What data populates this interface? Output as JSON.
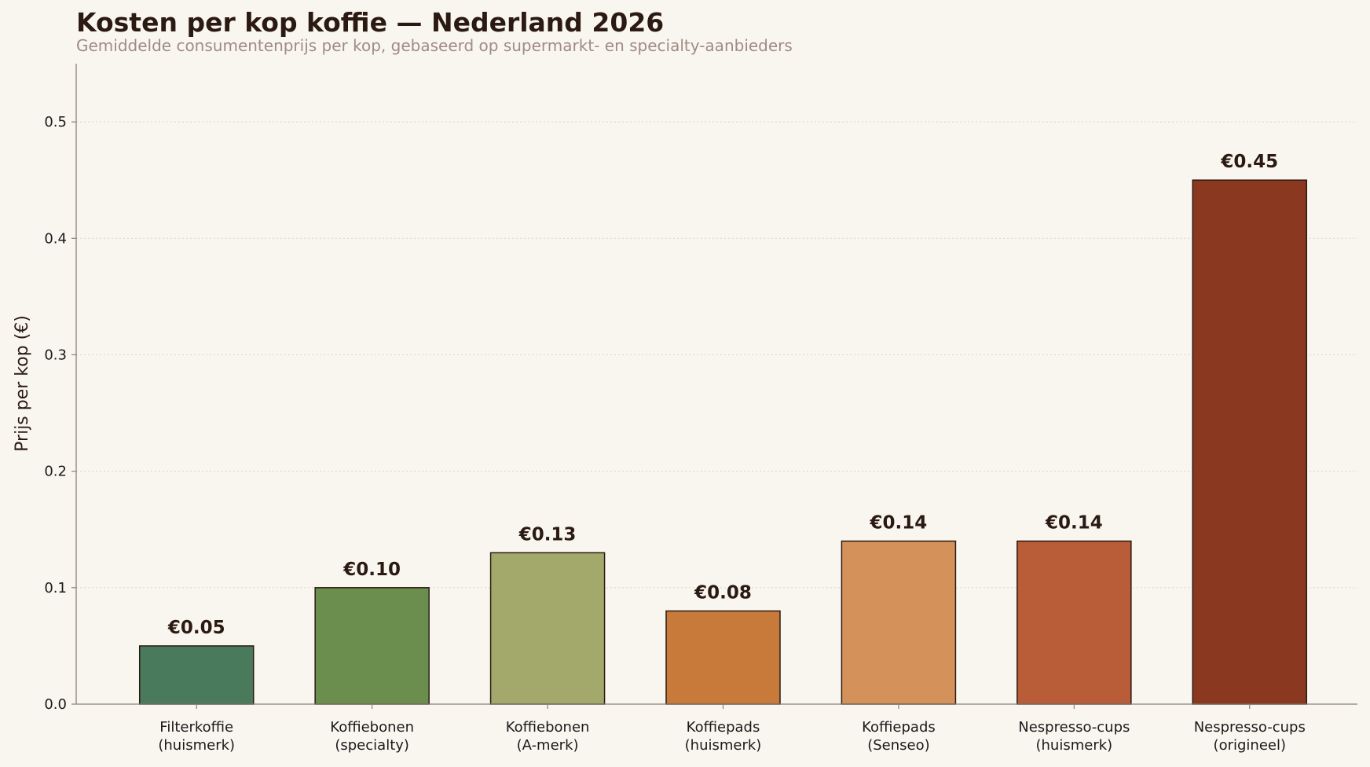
{
  "chart_data": {
    "type": "bar",
    "title": "Kosten per kop koffie — Nederland 2026",
    "subtitle": "Gemiddelde consumentenprijs per kop, gebaseerd op supermarkt- en specialty-aanbieders",
    "xlabel": "",
    "ylabel": "Prijs per kop (€)",
    "ylim": [
      0,
      0.55
    ],
    "yticks": [
      "0.0",
      "0.1",
      "0.2",
      "0.3",
      "0.4",
      "0.5"
    ],
    "grid": "horizontal-dotted",
    "legend": "none",
    "categories": [
      [
        "Filterkoffie",
        "(huismerk)"
      ],
      [
        "Koffiebonen",
        "(specialty)"
      ],
      [
        "Koffiebonen",
        "(A-merk)"
      ],
      [
        "Koffiepads",
        "(huismerk)"
      ],
      [
        "Koffiepads",
        "(Senseo)"
      ],
      [
        "Nespresso-cups",
        "(huismerk)"
      ],
      [
        "Nespresso-cups",
        "(origineel)"
      ]
    ],
    "values": [
      0.05,
      0.1,
      0.13,
      0.08,
      0.14,
      0.14,
      0.45
    ],
    "value_labels": [
      "€0.05",
      "€0.10",
      "€0.13",
      "€0.08",
      "€0.14",
      "€0.14",
      "€0.45"
    ],
    "colors": [
      "#4a7a5c",
      "#6b8e4e",
      "#a2a96b",
      "#c87a3a",
      "#d4925a",
      "#b95c38",
      "#8b3820"
    ]
  }
}
